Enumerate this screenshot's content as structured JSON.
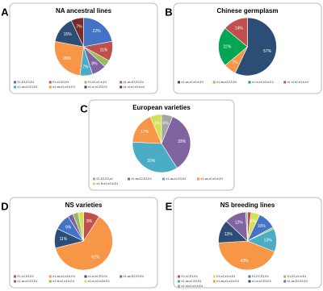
{
  "chart_data": [
    {
      "type": "pie",
      "label": "A",
      "title": "NA ancestral lines",
      "categories": [
        "E1,E2,E3,E4",
        "E1,e2,E3,E4",
        "E1,e2,e3-tr,E4",
        "e1-as,E2,E3,E4",
        "e1-as,e2,E3,E4",
        "e1-as,e2,e3-tr,E4",
        "e1-nl,e2,E3,E4",
        "e1-nl,e2,e3-tr,e4"
      ],
      "values": [
        22,
        11,
        4,
        8,
        7,
        26,
        15,
        7
      ],
      "value_labels": [
        "22%",
        "11%",
        "4%",
        "8%",
        "7%",
        "26%",
        "15%",
        "7%"
      ],
      "colors": [
        "#4472c4",
        "#c0504d",
        "#9bbb59",
        "#8064a2",
        "#4bacc6",
        "#f79646",
        "#2c4d75",
        "#772c2a"
      ]
    },
    {
      "type": "pie",
      "label": "B",
      "title": "Chinese germplasm",
      "categories": [
        "e1-as,e2,e3-tr,E4",
        "e1-as,e2,E3,E4",
        "e1-nl,e2,e3-tr,E4",
        "e1-nl,e2,e3-tr,e4"
      ],
      "values": [
        57,
        7,
        22,
        14
      ],
      "value_labels": [
        "57%",
        "7%",
        "22%",
        "14%"
      ],
      "colors": [
        "#2c4d75",
        "#f79646",
        "#00a651",
        "#c0504d"
      ]
    },
    {
      "type": "pie",
      "label": "C",
      "title": "European varieties",
      "categories": [
        "E1,E2,E3,e4",
        "e1-as,E2,E3,E4",
        "e1-as,e2,E3,E4",
        "e1-as,e2,e3-tr,E4",
        "e1-fs,e2,e3-tr,E4"
      ],
      "values": [
        6,
        33,
        33,
        17,
        6
      ],
      "value_labels": [
        "6%",
        "33%",
        "33%",
        "17%",
        "6%"
      ],
      "colors": [
        "#a5a5a5",
        "#8064a2",
        "#4bacc6",
        "#f79646",
        "#d4e157"
      ]
    },
    {
      "type": "pie",
      "label": "D",
      "title": "NS varieties",
      "categories": [
        "E1,e2,E3,E4",
        "e1-as,e2,e3-tr,E4",
        "e1-nl,e2,E3,E4",
        "e1-as,E2,E3,E4",
        "e1-as,e2,E3,E4",
        "e1-fs,e2,e3-tr,E4",
        "e1-nl,e2,e3-tr,E4"
      ],
      "values": [
        9,
        62,
        11,
        9,
        3,
        3,
        3
      ],
      "value_labels": [
        "9%",
        "62%",
        "11%",
        "9%",
        "3%",
        "3%",
        "3%"
      ],
      "colors": [
        "#c0504d",
        "#f79646",
        "#2c4d75",
        "#4472c4",
        "#8064a2",
        "#9bbb59",
        "#d4e157"
      ]
    },
    {
      "type": "pie",
      "label": "E",
      "title": "NS breeding lines",
      "categories": [
        "E1,e2,E3,E4",
        "E1,e2,e3-tr,E4",
        "E1,E2,E3,E4",
        "E1,E2,e3-tr,E4",
        "e1-as,e2,E3,E4",
        "e1-as,e2,e3-tr,E4",
        "e1-nl,e2,E3,E4",
        "e1-as,E2,E3,E4",
        "e1-nl,e2,e3-tr,E4"
      ],
      "values": [
        2,
        5,
        10,
        1,
        13,
        43,
        13,
        12,
        1
      ],
      "value_labels": [
        "2%",
        "5%",
        "10%",
        "1%",
        "13%",
        "43%",
        "13%",
        "12%",
        "1%"
      ],
      "colors": [
        "#c0504d",
        "#d4e157",
        "#4472c4",
        "#9bbb59",
        "#4bacc6",
        "#f79646",
        "#2c4d75",
        "#8064a2",
        "#a5a5a5"
      ]
    }
  ]
}
